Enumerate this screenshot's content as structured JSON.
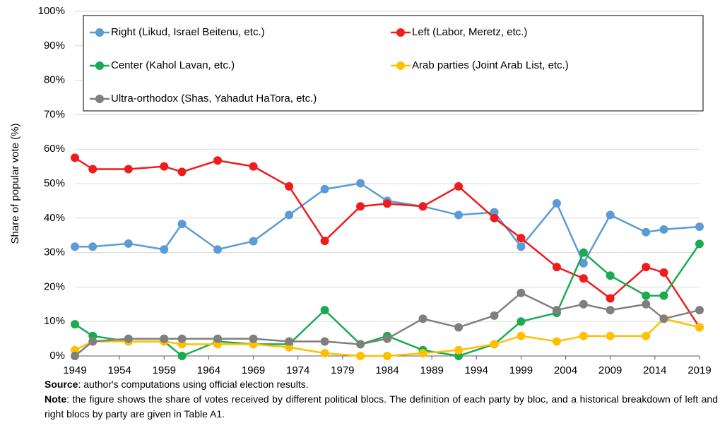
{
  "chart_data": {
    "type": "line",
    "y_label": "Share of popular vote (%)",
    "x": [
      1949,
      1951,
      1955,
      1959,
      1961,
      1965,
      1969,
      1973,
      1977,
      1981,
      1984,
      1988,
      1992,
      1996,
      1999,
      2003,
      2006,
      2009,
      2013,
      2015,
      2019
    ],
    "series": [
      {
        "name": "Right (Likud, Israel Beitenu, etc.)",
        "color": "#5b9bd5",
        "values": [
          31.7,
          31.7,
          32.6,
          30.9,
          38.3,
          30.9,
          33.3,
          40.9,
          48.4,
          50.1,
          45.0,
          43.4,
          40.9,
          41.7,
          31.7,
          44.3,
          26.9,
          40.9,
          35.9,
          36.7,
          37.5
        ]
      },
      {
        "name": "Left (Labor, Meretz, etc.)",
        "color": "#ee1c1c",
        "values": [
          57.5,
          54.2,
          54.2,
          55.0,
          53.4,
          56.7,
          55.0,
          49.2,
          33.4,
          43.4,
          44.2,
          43.4,
          49.2,
          40.0,
          34.2,
          25.8,
          22.5,
          16.7,
          25.8,
          24.2,
          8.3
        ]
      },
      {
        "name": "Center (Kahol Lavan, etc.)",
        "color": "#1aab50",
        "values": [
          9.2,
          5.8,
          4.2,
          4.2,
          0,
          4.2,
          3.4,
          3.4,
          13.3,
          3.4,
          5.8,
          1.7,
          0,
          3.4,
          10.0,
          12.5,
          30.0,
          23.3,
          17.5,
          17.5,
          32.5
        ]
      },
      {
        "name": "Arab parties (Joint Arab List, etc.)",
        "color": "#ffc000",
        "values": [
          1.7,
          4.2,
          4.2,
          4.2,
          3.4,
          3.4,
          3.4,
          2.5,
          0.8,
          0,
          0,
          0.8,
          1.7,
          3.4,
          5.8,
          4.2,
          5.8,
          5.8,
          5.8,
          10.8,
          8.3
        ]
      },
      {
        "name": "Ultra-orthodox (Shas, Yahadut HaTora, etc.)",
        "color": "#7f7f7f",
        "values": [
          0,
          4.2,
          5.0,
          5.0,
          5.0,
          5.0,
          5.0,
          4.2,
          4.2,
          3.4,
          5.0,
          10.8,
          8.3,
          11.7,
          18.3,
          13.3,
          15.0,
          13.3,
          15.0,
          10.8,
          13.3
        ]
      }
    ],
    "xlim": [
      1949,
      2019
    ],
    "xticks": [
      1949,
      1954,
      1959,
      1964,
      1969,
      1974,
      1979,
      1984,
      1989,
      1994,
      1999,
      2004,
      2009,
      2014,
      2019
    ],
    "ylim": [
      0,
      100
    ],
    "yticks": [
      {
        "value": 0,
        "label": "0%"
      },
      {
        "value": 10,
        "label": "10%"
      },
      {
        "value": 20,
        "label": "20%"
      },
      {
        "value": 30,
        "label": "30%"
      },
      {
        "value": 40,
        "label": "40%"
      },
      {
        "value": 50,
        "label": "50%"
      },
      {
        "value": 60,
        "label": "60%"
      },
      {
        "value": 70,
        "label": "70%"
      },
      {
        "value": 80,
        "label": "80%"
      },
      {
        "value": 90,
        "label": "90%"
      },
      {
        "value": 100,
        "label": "100%"
      }
    ],
    "grid": true,
    "legend": "top"
  },
  "notes": [
    {
      "label": "Source",
      "text": ": author's computations using official election results."
    },
    {
      "label": "Note",
      "text": ": the figure shows the share of votes received by different political blocs. The definition of each party by bloc, and a historical breakdown of left and right blocs by party are given in Table A1."
    }
  ]
}
